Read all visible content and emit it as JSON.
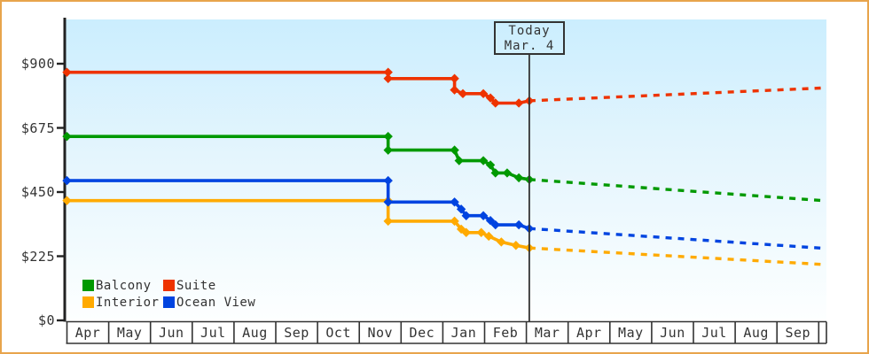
{
  "window": {
    "border_color": "#e8a44c",
    "background": "#ffffff",
    "text_color": "#333333"
  },
  "chart_data": {
    "type": "line",
    "title": "",
    "description": "Cabin price history by month with dashed future projection",
    "units": "USD",
    "y_axis": {
      "ticks": [
        {
          "label": "$900",
          "value": 900
        },
        {
          "label": "$675",
          "value": 675
        },
        {
          "label": "$450",
          "value": 450
        },
        {
          "label": "$225",
          "value": 225
        },
        {
          "label": "$0",
          "value": 0
        }
      ],
      "range": [
        0,
        1055
      ],
      "grid": false
    },
    "x_axis": {
      "months": [
        "Apr",
        "May",
        "Jun",
        "Jul",
        "Aug",
        "Sep",
        "Oct",
        "Nov",
        "Dec",
        "Jan",
        "Feb",
        "Mar",
        "Apr",
        "May",
        "Jun",
        "Jul",
        "Aug",
        "Sep"
      ]
    },
    "today": {
      "line1": "Today",
      "line2": "Mar. 4",
      "month_x": 11.07
    },
    "plot": {
      "gradient_top": "#cbeefe",
      "gradient_mid": "#e4f5fd",
      "gradient_bottom": "#fdffff",
      "axis_color": "#222222",
      "grid_color": "#333333"
    },
    "series": [
      {
        "name": "Interior",
        "color": "#ffaa00",
        "points": [
          [
            0,
            420
          ],
          [
            7.69,
            420
          ],
          [
            7.69,
            348
          ],
          [
            9.28,
            348
          ],
          [
            9.44,
            320
          ],
          [
            9.56,
            308
          ],
          [
            9.92,
            308
          ],
          [
            10.1,
            295
          ],
          [
            10.4,
            275
          ],
          [
            10.75,
            263
          ],
          [
            11.07,
            254
          ]
        ],
        "projection": [
          [
            11.07,
            254
          ],
          [
            18.1,
            196
          ]
        ]
      },
      {
        "name": "Ocean View",
        "color": "#0044e0",
        "points": [
          [
            0,
            490
          ],
          [
            7.69,
            490
          ],
          [
            7.69,
            415
          ],
          [
            9.28,
            415
          ],
          [
            9.44,
            390
          ],
          [
            9.56,
            367
          ],
          [
            9.97,
            367
          ],
          [
            10.14,
            350
          ],
          [
            10.26,
            335
          ],
          [
            10.82,
            335
          ],
          [
            11.07,
            322
          ]
        ],
        "projection": [
          [
            11.07,
            322
          ],
          [
            18.1,
            253
          ]
        ]
      },
      {
        "name": "Balcony",
        "color": "#009900",
        "points": [
          [
            0,
            645
          ],
          [
            7.69,
            645
          ],
          [
            7.69,
            597
          ],
          [
            9.28,
            597
          ],
          [
            9.39,
            560
          ],
          [
            9.97,
            560
          ],
          [
            10.14,
            545
          ],
          [
            10.26,
            517
          ],
          [
            10.54,
            517
          ],
          [
            10.82,
            500
          ],
          [
            11.07,
            494
          ]
        ],
        "projection": [
          [
            11.07,
            494
          ],
          [
            18.1,
            420
          ]
        ]
      },
      {
        "name": "Suite",
        "color": "#ee3300",
        "points": [
          [
            0,
            870
          ],
          [
            7.69,
            870
          ],
          [
            7.69,
            848
          ],
          [
            9.28,
            848
          ],
          [
            9.28,
            808
          ],
          [
            9.48,
            795
          ],
          [
            9.97,
            795
          ],
          [
            10.14,
            780
          ],
          [
            10.26,
            762
          ],
          [
            10.82,
            762
          ],
          [
            11.07,
            770
          ]
        ],
        "projection": [
          [
            11.07,
            770
          ],
          [
            18.1,
            815
          ]
        ]
      }
    ],
    "legend": {
      "rows": [
        [
          {
            "label": "Balcony",
            "color": "#009900"
          },
          {
            "label": "Suite",
            "color": "#ee3300"
          }
        ],
        [
          {
            "label": "Interior",
            "color": "#ffaa00"
          },
          {
            "label": "Ocean View",
            "color": "#0044e0"
          }
        ]
      ]
    }
  }
}
